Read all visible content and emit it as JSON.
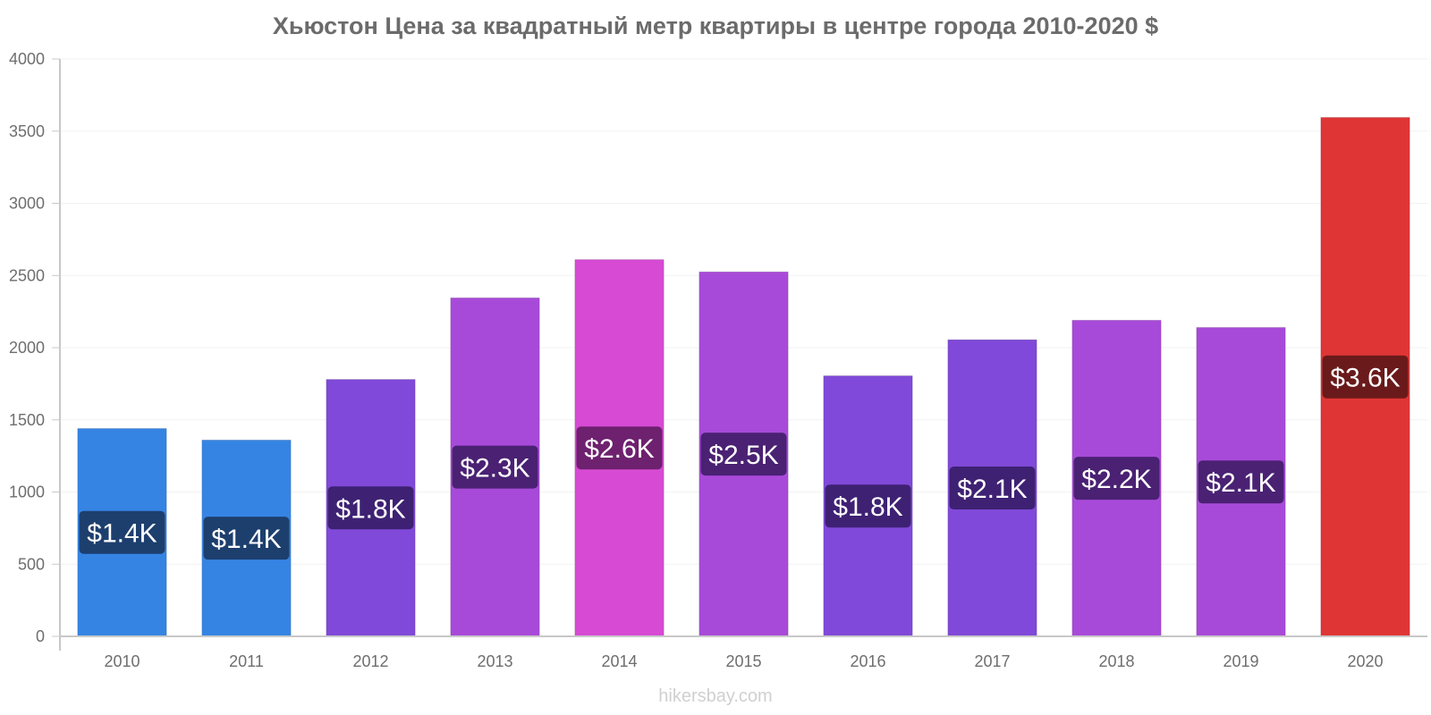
{
  "chart_data": {
    "type": "bar",
    "title": "Хьюстон Цена за квадратный метр квартиры в центре города 2010-2020 $",
    "categories": [
      "2010",
      "2011",
      "2012",
      "2013",
      "2014",
      "2015",
      "2016",
      "2017",
      "2018",
      "2019",
      "2020"
    ],
    "values": [
      1440,
      1360,
      1780,
      2345,
      2610,
      2525,
      1805,
      2055,
      2190,
      2140,
      3595
    ],
    "data_labels": [
      "$1.4K",
      "$1.4K",
      "$1.8K",
      "$2.3K",
      "$2.6K",
      "$2.5K",
      "$1.8K",
      "$2.1K",
      "$2.2K",
      "$2.1K",
      "$3.6K"
    ],
    "bar_colors": [
      "#3584e4",
      "#3584e4",
      "#8049d9",
      "#a84ad9",
      "#d64ad4",
      "#a84ad9",
      "#8049d9",
      "#8049d9",
      "#a84ad9",
      "#a84ad9",
      "#e03535"
    ],
    "label_colors": [
      "#1d3f6e",
      "#1d3f6e",
      "#3e2173",
      "#4a2173",
      "#6e216e",
      "#4a2173",
      "#3e2173",
      "#3e2173",
      "#4a2173",
      "#4a2173",
      "#6a1a1a"
    ],
    "yticks": [
      "0",
      "500",
      "1000",
      "1500",
      "2000",
      "2500",
      "3000",
      "3500",
      "4000"
    ],
    "ylim": [
      0,
      4000
    ],
    "xlabel": "",
    "ylabel": "",
    "grid": true,
    "legend": "none"
  },
  "watermark": "hikersbay.com"
}
